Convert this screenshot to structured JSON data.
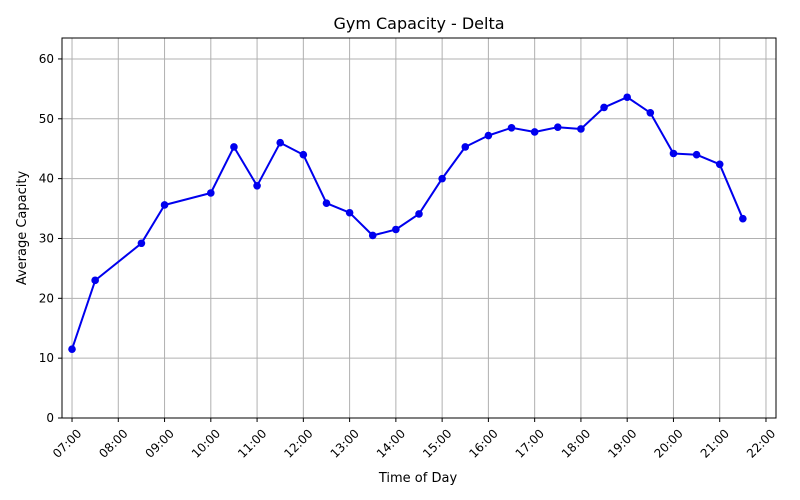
{
  "chart_data": {
    "type": "line",
    "title": "Gym Capacity - Delta",
    "xlabel": "Time of Day",
    "ylabel": "Average Capacity",
    "ylim": [
      0,
      63.5
    ],
    "yticks": [
      0,
      10,
      20,
      30,
      40,
      50,
      60
    ],
    "xlim": [
      "06:47",
      "22:13"
    ],
    "xticks": [
      "07:00",
      "08:00",
      "09:00",
      "10:00",
      "11:00",
      "12:00",
      "13:00",
      "14:00",
      "15:00",
      "16:00",
      "17:00",
      "18:00",
      "19:00",
      "20:00",
      "21:00",
      "22:00"
    ],
    "grid": true,
    "series": [
      {
        "color": "#0000ee",
        "points": [
          {
            "x": "07:00",
            "y": 11.5
          },
          {
            "x": "07:30",
            "y": 23.0
          },
          {
            "x": "08:30",
            "y": 29.2
          },
          {
            "x": "09:00",
            "y": 35.6
          },
          {
            "x": "10:00",
            "y": 37.6
          },
          {
            "x": "10:30",
            "y": 45.3
          },
          {
            "x": "11:00",
            "y": 38.8
          },
          {
            "x": "11:30",
            "y": 46.0
          },
          {
            "x": "12:00",
            "y": 44.0
          },
          {
            "x": "12:30",
            "y": 35.9
          },
          {
            "x": "13:00",
            "y": 34.3
          },
          {
            "x": "13:30",
            "y": 30.5
          },
          {
            "x": "14:00",
            "y": 31.5
          },
          {
            "x": "14:30",
            "y": 34.1
          },
          {
            "x": "15:00",
            "y": 40.0
          },
          {
            "x": "15:30",
            "y": 45.3
          },
          {
            "x": "16:00",
            "y": 47.2
          },
          {
            "x": "16:30",
            "y": 48.5
          },
          {
            "x": "17:00",
            "y": 47.8
          },
          {
            "x": "17:30",
            "y": 48.6
          },
          {
            "x": "18:00",
            "y": 48.3
          },
          {
            "x": "18:30",
            "y": 51.9
          },
          {
            "x": "19:00",
            "y": 53.6
          },
          {
            "x": "19:30",
            "y": 51.0
          },
          {
            "x": "20:00",
            "y": 44.2
          },
          {
            "x": "20:30",
            "y": 44.0
          },
          {
            "x": "21:00",
            "y": 42.4
          },
          {
            "x": "21:30",
            "y": 33.3
          }
        ]
      }
    ]
  }
}
